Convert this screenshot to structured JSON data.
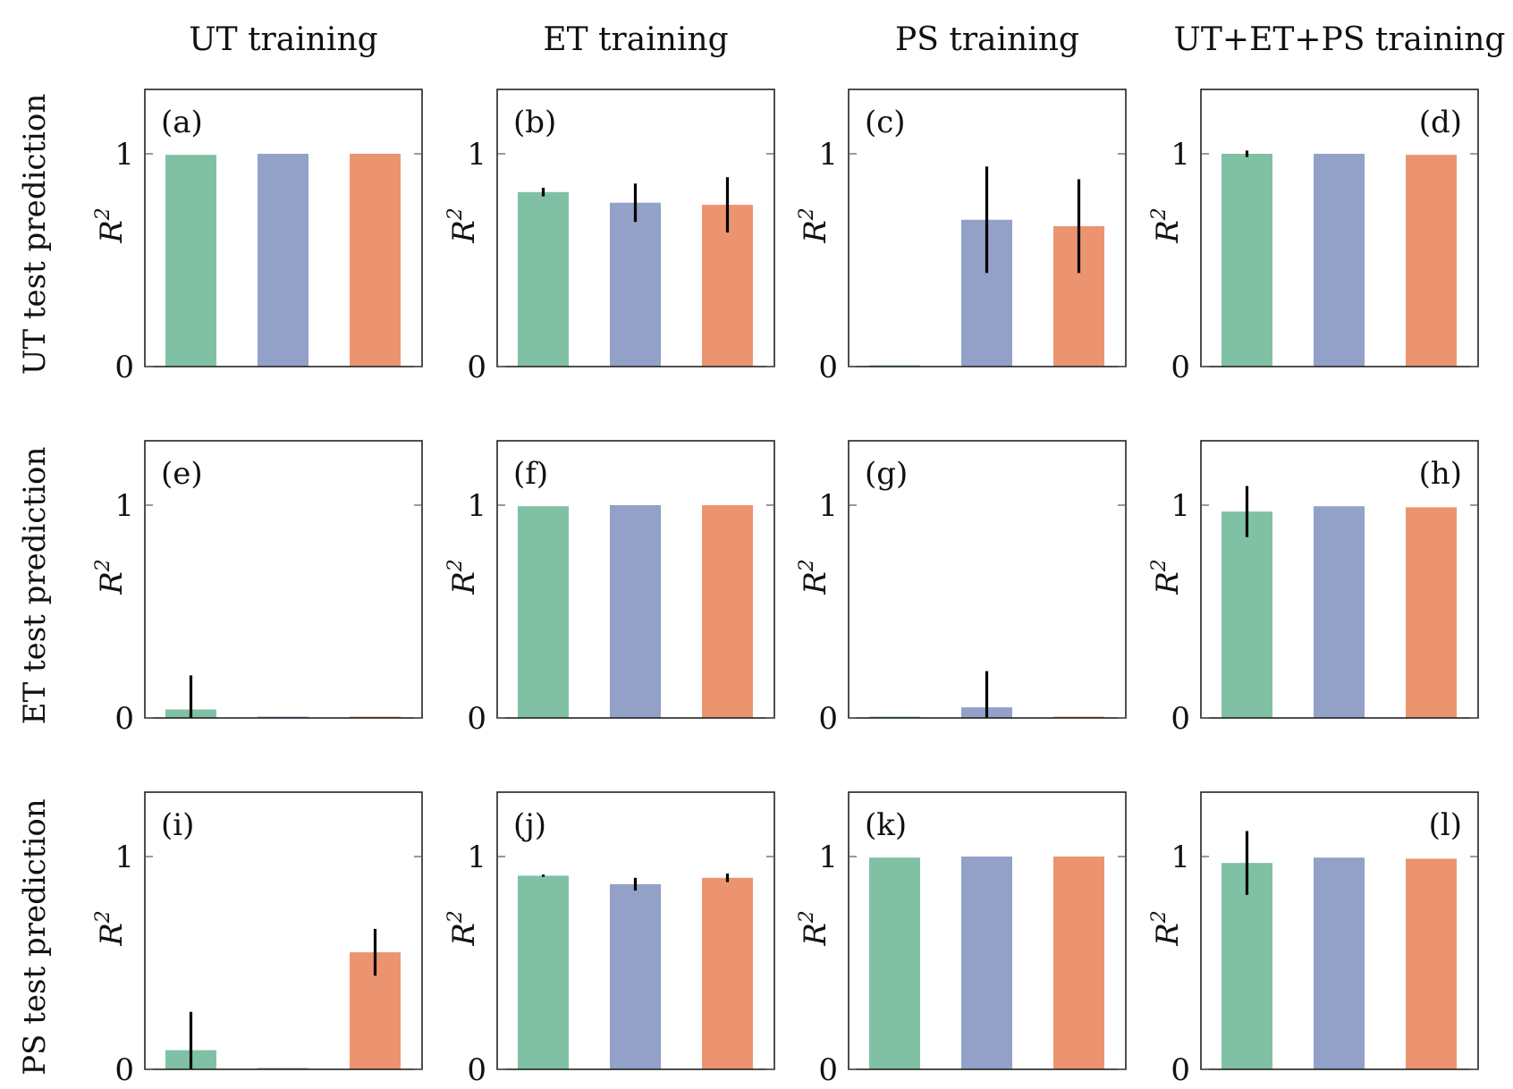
{
  "colors": {
    "series1": "#80c1a5",
    "series2": "#93a1c8",
    "series3": "#ec9470"
  },
  "chart_data": {
    "type": "bar",
    "column_titles": [
      "UT training",
      "ET training",
      "PS training",
      "UT+ET+PS training"
    ],
    "row_titles": [
      "UT test prediction",
      "ET test prediction",
      "PS test prediction"
    ],
    "ylabel": "R",
    "ylabel_sup": "2",
    "yticks": [
      0,
      1
    ],
    "ylim": [
      0,
      1.3
    ],
    "panels": [
      {
        "label": "(a)",
        "label_pos": "top-left",
        "values": [
          0.995,
          1.0,
          1.0
        ],
        "errors": [
          0,
          0,
          0
        ]
      },
      {
        "label": "(b)",
        "label_pos": "top-left",
        "values": [
          0.82,
          0.77,
          0.76
        ],
        "errors": [
          0.02,
          0.09,
          0.13
        ]
      },
      {
        "label": "(c)",
        "label_pos": "top-left",
        "values": [
          0.0,
          0.69,
          0.66
        ],
        "errors": [
          0,
          0.25,
          0.22
        ]
      },
      {
        "label": "(d)",
        "label_pos": "top-right",
        "values": [
          1.0,
          1.0,
          0.995
        ],
        "errors": [
          0.015,
          0,
          0
        ]
      },
      {
        "label": "(e)",
        "label_pos": "top-left",
        "values": [
          0.04,
          0.0,
          0.0
        ],
        "errors": [
          0.16,
          0,
          0
        ]
      },
      {
        "label": "(f)",
        "label_pos": "top-left",
        "values": [
          0.995,
          1.0,
          1.0
        ],
        "errors": [
          0,
          0,
          0
        ]
      },
      {
        "label": "(g)",
        "label_pos": "top-left",
        "values": [
          0.0,
          0.05,
          0.0
        ],
        "errors": [
          0,
          0.17,
          0
        ]
      },
      {
        "label": "(h)",
        "label_pos": "top-right",
        "values": [
          0.97,
          0.995,
          0.99
        ],
        "errors": [
          0.12,
          0,
          0
        ]
      },
      {
        "label": "(i)",
        "label_pos": "top-left",
        "values": [
          0.09,
          0.0,
          0.55
        ],
        "errors": [
          0.18,
          0,
          0.11
        ]
      },
      {
        "label": "(j)",
        "label_pos": "top-left",
        "values": [
          0.91,
          0.87,
          0.9
        ],
        "errors": [
          0.005,
          0.03,
          0.02
        ]
      },
      {
        "label": "(k)",
        "label_pos": "top-left",
        "values": [
          0.995,
          1.0,
          1.0
        ],
        "errors": [
          0,
          0,
          0
        ]
      },
      {
        "label": "(l)",
        "label_pos": "top-right",
        "values": [
          0.97,
          0.995,
          0.99
        ],
        "errors": [
          0.15,
          0,
          0
        ]
      }
    ]
  }
}
